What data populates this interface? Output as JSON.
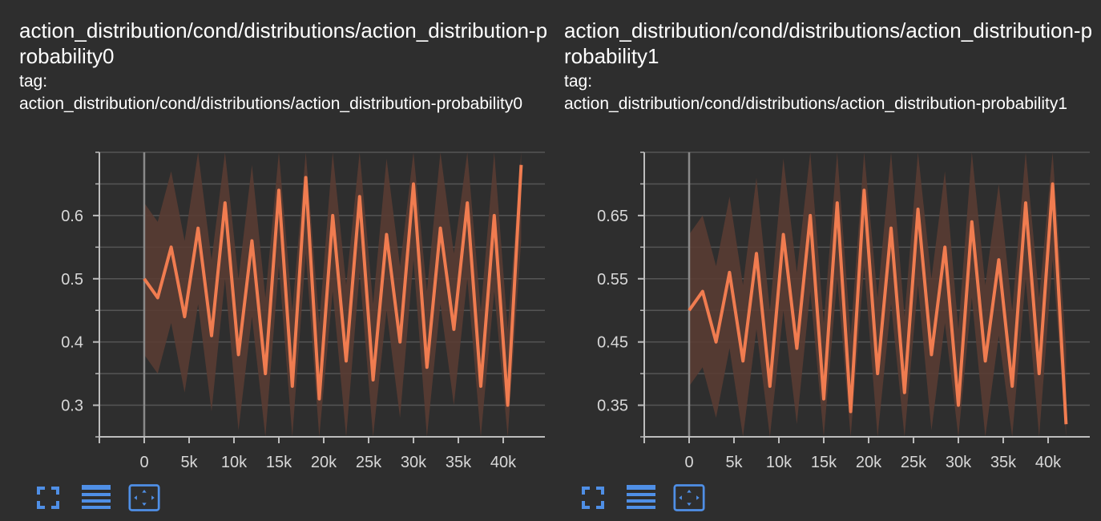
{
  "colors": {
    "background": "#2e2e2e",
    "line": "#f07c50",
    "band": "#5a3c33",
    "axis": "#bdbdbd",
    "grid": "#555555",
    "icon": "#4f8fe6"
  },
  "toolbar_icons": [
    "fullscreen-icon",
    "data-list-icon",
    "fit-domain-icon"
  ],
  "cards": [
    {
      "title": "action_distribution/cond/distributions/action_distribution-probability0",
      "tag_label": "tag:",
      "tag_value": "action_distribution/cond/distributions/action_distribution-probability0"
    },
    {
      "title": "action_distribution/cond/distributions/action_distribution-probability1",
      "tag_label": "tag:",
      "tag_value": "action_distribution/cond/distributions/action_distribution-probability1"
    }
  ],
  "chart_data": [
    {
      "type": "line",
      "title": "action_distribution/cond/distributions/action_distribution-probability0",
      "xlabel": "",
      "ylabel": "",
      "xlim": [
        -5000,
        45000
      ],
      "ylim": [
        0.25,
        0.7
      ],
      "x_ticks": [
        0,
        5000,
        10000,
        15000,
        20000,
        25000,
        30000,
        35000,
        40000
      ],
      "x_tick_labels": [
        "0",
        "5k",
        "10k",
        "15k",
        "20k",
        "25k",
        "30k",
        "35k",
        "40k"
      ],
      "y_ticks": [
        0.3,
        0.4,
        0.5,
        0.6
      ],
      "y_tick_labels": [
        "0.3",
        "0.4",
        "0.5",
        "0.6"
      ],
      "grid": true,
      "series": [
        {
          "x": [
            0,
            1500,
            3000,
            4500,
            6000,
            7500,
            9000,
            10500,
            12000,
            13500,
            15000,
            16500,
            18000,
            19500,
            21000,
            22500,
            24000,
            25500,
            27000,
            28500,
            30000,
            31500,
            33000,
            34500,
            36000,
            37500,
            39000,
            40500,
            42000
          ],
          "y": [
            0.5,
            0.47,
            0.55,
            0.44,
            0.58,
            0.41,
            0.62,
            0.38,
            0.56,
            0.35,
            0.64,
            0.33,
            0.66,
            0.31,
            0.6,
            0.37,
            0.63,
            0.34,
            0.57,
            0.4,
            0.65,
            0.36,
            0.58,
            0.42,
            0.62,
            0.33,
            0.6,
            0.3,
            0.68
          ]
        }
      ]
    },
    {
      "type": "line",
      "title": "action_distribution/cond/distributions/action_distribution-probability1",
      "xlabel": "",
      "ylabel": "",
      "xlim": [
        -5000,
        45000
      ],
      "ylim": [
        0.3,
        0.75
      ],
      "x_ticks": [
        0,
        5000,
        10000,
        15000,
        20000,
        25000,
        30000,
        35000,
        40000
      ],
      "x_tick_labels": [
        "0",
        "5k",
        "10k",
        "15k",
        "20k",
        "25k",
        "30k",
        "35k",
        "40k"
      ],
      "y_ticks": [
        0.35,
        0.45,
        0.55,
        0.65
      ],
      "y_tick_labels": [
        "0.35",
        "0.45",
        "0.55",
        "0.65"
      ],
      "grid": true,
      "series": [
        {
          "x": [
            0,
            1500,
            3000,
            4500,
            6000,
            7500,
            9000,
            10500,
            12000,
            13500,
            15000,
            16500,
            18000,
            19500,
            21000,
            22500,
            24000,
            25500,
            27000,
            28500,
            30000,
            31500,
            33000,
            34500,
            36000,
            37500,
            39000,
            40500,
            42000
          ],
          "y": [
            0.5,
            0.53,
            0.45,
            0.56,
            0.42,
            0.59,
            0.38,
            0.62,
            0.44,
            0.65,
            0.36,
            0.67,
            0.34,
            0.69,
            0.4,
            0.63,
            0.37,
            0.66,
            0.43,
            0.6,
            0.35,
            0.64,
            0.42,
            0.58,
            0.38,
            0.67,
            0.4,
            0.7,
            0.32
          ]
        }
      ]
    }
  ]
}
